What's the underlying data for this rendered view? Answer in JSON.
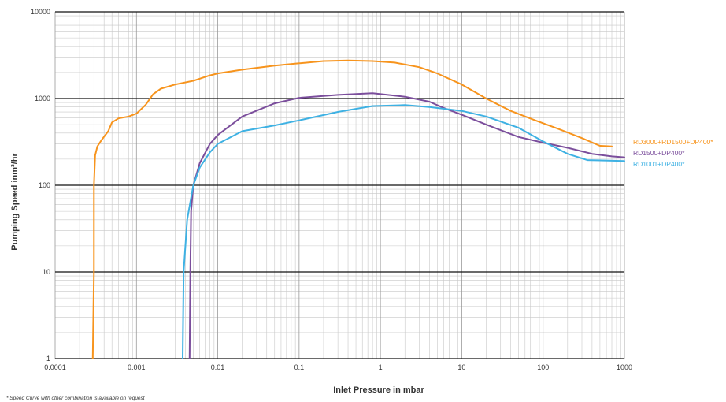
{
  "chart_data": {
    "type": "line",
    "xscale": "log",
    "yscale": "log",
    "xlabel": "Inlet Pressure in mbar",
    "ylabel": "Pumping Speed inm³/hr",
    "xlim": [
      0.0001,
      1000
    ],
    "ylim": [
      1,
      10000
    ],
    "x_ticks": [
      {
        "value": 0.0001,
        "label": "0.0001"
      },
      {
        "value": 0.001,
        "label": "0.001"
      },
      {
        "value": 0.01,
        "label": "0.01"
      },
      {
        "value": 0.1,
        "label": "0.1"
      },
      {
        "value": 1,
        "label": "1"
      },
      {
        "value": 10,
        "label": "10"
      },
      {
        "value": 100,
        "label": "100"
      },
      {
        "value": 1000,
        "label": "1000"
      }
    ],
    "y_ticks": [
      {
        "value": 1,
        "label": "1"
      },
      {
        "value": 10,
        "label": "10"
      },
      {
        "value": 100,
        "label": "100"
      },
      {
        "value": 1000,
        "label": "1000"
      },
      {
        "value": 10000,
        "label": "10000"
      }
    ],
    "grid": true,
    "legend_position": "right",
    "footnote": "* Speed Curve with other combination is available on request",
    "series": [
      {
        "name": "RD3000+RD1500+DP400*",
        "color": "#F7941D",
        "points": [
          [
            0.00029,
            1
          ],
          [
            0.0003,
            10
          ],
          [
            0.0003,
            100
          ],
          [
            0.00031,
            220
          ],
          [
            0.00033,
            280
          ],
          [
            0.00037,
            330
          ],
          [
            0.00045,
            420
          ],
          [
            0.0005,
            530
          ],
          [
            0.0006,
            590
          ],
          [
            0.0008,
            620
          ],
          [
            0.001,
            670
          ],
          [
            0.0013,
            850
          ],
          [
            0.0016,
            1120
          ],
          [
            0.002,
            1300
          ],
          [
            0.003,
            1450
          ],
          [
            0.005,
            1600
          ],
          [
            0.008,
            1850
          ],
          [
            0.01,
            1950
          ],
          [
            0.02,
            2150
          ],
          [
            0.05,
            2400
          ],
          [
            0.1,
            2550
          ],
          [
            0.2,
            2700
          ],
          [
            0.4,
            2750
          ],
          [
            0.8,
            2700
          ],
          [
            1.5,
            2600
          ],
          [
            3,
            2300
          ],
          [
            5,
            1950
          ],
          [
            10,
            1450
          ],
          [
            20,
            1000
          ],
          [
            40,
            720
          ],
          [
            80,
            560
          ],
          [
            150,
            450
          ],
          [
            300,
            350
          ],
          [
            500,
            285
          ],
          [
            700,
            280
          ]
        ]
      },
      {
        "name": "RD1500+DP400*",
        "color": "#7B4E9C",
        "points": [
          [
            0.0045,
            1
          ],
          [
            0.0046,
            10
          ],
          [
            0.0047,
            50
          ],
          [
            0.005,
            100
          ],
          [
            0.006,
            180
          ],
          [
            0.008,
            300
          ],
          [
            0.01,
            380
          ],
          [
            0.02,
            620
          ],
          [
            0.05,
            880
          ],
          [
            0.1,
            1020
          ],
          [
            0.3,
            1100
          ],
          [
            0.8,
            1150
          ],
          [
            2,
            1050
          ],
          [
            4,
            920
          ],
          [
            6,
            780
          ],
          [
            10,
            650
          ],
          [
            20,
            500
          ],
          [
            50,
            360
          ],
          [
            100,
            310
          ],
          [
            200,
            270
          ],
          [
            400,
            230
          ],
          [
            700,
            215
          ],
          [
            1000,
            210
          ]
        ]
      },
      {
        "name": "RD1001+DP400*",
        "color": "#3EB1E3",
        "points": [
          [
            0.0037,
            1
          ],
          [
            0.0038,
            10
          ],
          [
            0.0042,
            40
          ],
          [
            0.005,
            100
          ],
          [
            0.006,
            160
          ],
          [
            0.008,
            240
          ],
          [
            0.01,
            300
          ],
          [
            0.02,
            420
          ],
          [
            0.05,
            490
          ],
          [
            0.1,
            560
          ],
          [
            0.3,
            700
          ],
          [
            0.8,
            820
          ],
          [
            2,
            840
          ],
          [
            4,
            800
          ],
          [
            10,
            720
          ],
          [
            20,
            620
          ],
          [
            50,
            460
          ],
          [
            100,
            320
          ],
          [
            200,
            230
          ],
          [
            350,
            195
          ],
          [
            1000,
            190
          ]
        ]
      }
    ]
  }
}
